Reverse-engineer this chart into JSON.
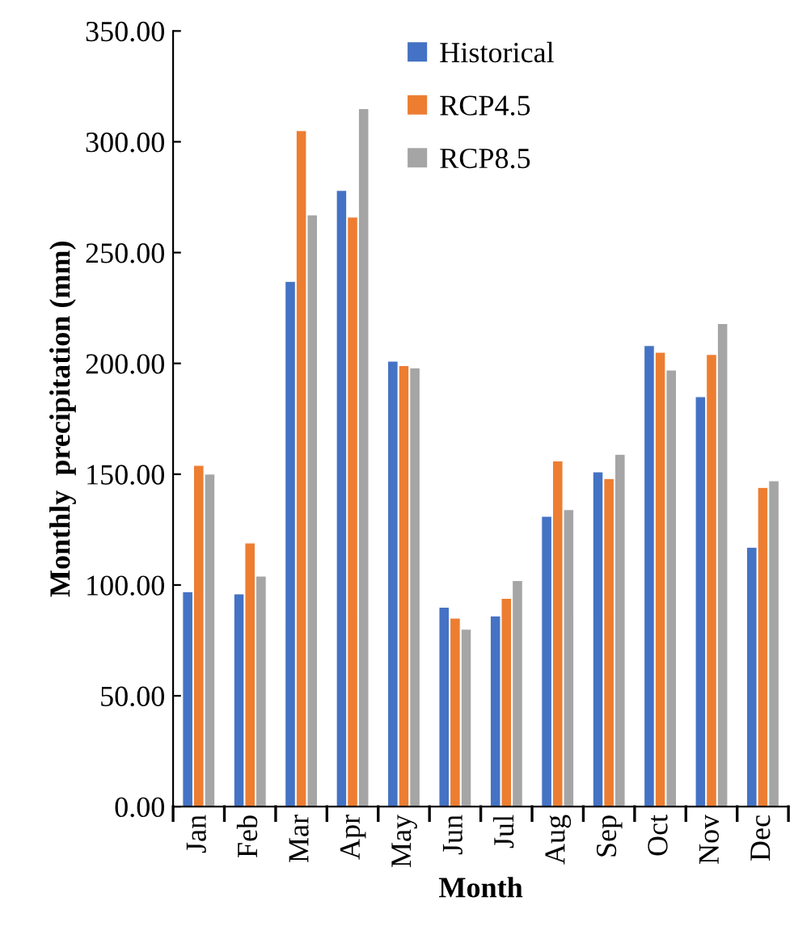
{
  "chart_data": {
    "type": "bar",
    "xlabel": "Month",
    "ylabel": "Monthly  precipitation (mm)",
    "categories": [
      "Jan",
      "Feb",
      "Mar",
      "Apr",
      "May",
      "Jun",
      "Jul",
      "Aug",
      "Sep",
      "Oct",
      "Nov",
      "Dec"
    ],
    "series": [
      {
        "name": "Historical",
        "color": "#4472c4",
        "values": [
          97,
          96,
          237,
          278,
          201,
          90,
          86,
          131,
          151,
          208,
          185,
          117
        ]
      },
      {
        "name": "RCP4.5",
        "color": "#ed7d31",
        "values": [
          154,
          119,
          305,
          266,
          199,
          85,
          94,
          156,
          148,
          205,
          204,
          144
        ]
      },
      {
        "name": "RCP8.5",
        "color": "#a5a5a5",
        "values": [
          150,
          104,
          267,
          315,
          198,
          80,
          102,
          134,
          159,
          197,
          218,
          147
        ]
      }
    ],
    "ylim": [
      0,
      350
    ],
    "yticks": [
      {
        "value": 0,
        "label": "0.00"
      },
      {
        "value": 50,
        "label": "50.00"
      },
      {
        "value": 100,
        "label": "100.00"
      },
      {
        "value": 150,
        "label": "150.00"
      },
      {
        "value": 200,
        "label": "200.00"
      },
      {
        "value": 250,
        "label": "250.00"
      },
      {
        "value": 300,
        "label": "300.00"
      },
      {
        "value": 350,
        "label": "350.00"
      }
    ],
    "grid": false,
    "legend": "top"
  }
}
